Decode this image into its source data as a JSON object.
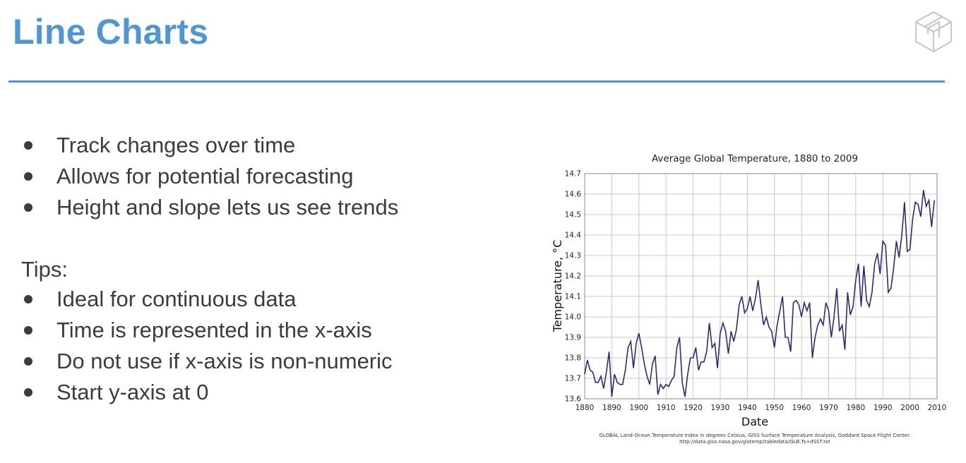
{
  "slide": {
    "title": "Line Charts",
    "bullets": [
      "Track changes over time",
      "Allows for potential forecasting",
      "Height and slope lets us see trends"
    ],
    "tips_label": "Tips:",
    "tips": [
      "Ideal for continuous data",
      "Time is represented in the x-axis",
      "Do not use if x-axis is non-numeric",
      "Start y-axis at 0"
    ]
  },
  "colors": {
    "accent": "#4f97d2",
    "line": "#2e2a7a",
    "text": "#3c3c3c"
  },
  "icons": {
    "logo": "cube-logo-icon"
  },
  "chart_data": {
    "type": "line",
    "title": "Average Global Temperature, 1880 to 2009",
    "xlabel": "Date",
    "ylabel": "Temperature, °C",
    "xlim": [
      1880,
      2010
    ],
    "ylim": [
      13.6,
      14.7
    ],
    "xticks": [
      "1880",
      "1890",
      "1900",
      "1910",
      "1920",
      "1930",
      "1940",
      "1950",
      "1960",
      "1970",
      "1980",
      "1990",
      "2000",
      "2010"
    ],
    "yticks": [
      "13.6",
      "13.7",
      "13.8",
      "13.9",
      "14.0",
      "14.1",
      "14.2",
      "14.3",
      "14.4",
      "14.5",
      "14.6",
      "14.7"
    ],
    "grid": true,
    "source_line1": "GLOBAL Land-Ocean Temperature Index in degrees Celsius, GISS Surface Temperature Analysis, Goddard Space Flight Center.",
    "source_line2": "http://data.giss.nasa.gov/gistemp/tabledata/GLB.Ts+dSST.txt",
    "series": [
      {
        "x": [
          1880,
          1881,
          1882,
          1883,
          1884,
          1885,
          1886,
          1887,
          1888,
          1889,
          1890,
          1891,
          1892,
          1893,
          1894,
          1895,
          1896,
          1897,
          1898,
          1899,
          1900,
          1901,
          1902,
          1903,
          1904,
          1905,
          1906,
          1907,
          1908,
          1909,
          1910,
          1911,
          1912,
          1913,
          1914,
          1915,
          1916,
          1917,
          1918,
          1919,
          1920,
          1921,
          1922,
          1923,
          1924,
          1925,
          1926,
          1927,
          1928,
          1929,
          1930,
          1931,
          1932,
          1933,
          1934,
          1935,
          1936,
          1937,
          1938,
          1939,
          1940,
          1941,
          1942,
          1943,
          1944,
          1945,
          1946,
          1947,
          1948,
          1949,
          1950,
          1951,
          1952,
          1953,
          1954,
          1955,
          1956,
          1957,
          1958,
          1959,
          1960,
          1961,
          1962,
          1963,
          1964,
          1965,
          1966,
          1967,
          1968,
          1969,
          1970,
          1971,
          1972,
          1973,
          1974,
          1975,
          1976,
          1977,
          1978,
          1979,
          1980,
          1981,
          1982,
          1983,
          1984,
          1985,
          1986,
          1987,
          1988,
          1989,
          1990,
          1991,
          1992,
          1993,
          1994,
          1995,
          1996,
          1997,
          1998,
          1999,
          2000,
          2001,
          2002,
          2003,
          2004,
          2005,
          2006,
          2007,
          2008,
          2009
        ],
        "values": [
          13.72,
          13.79,
          13.74,
          13.73,
          13.68,
          13.68,
          13.71,
          13.65,
          13.73,
          13.83,
          13.61,
          13.72,
          13.68,
          13.67,
          13.67,
          13.74,
          13.85,
          13.88,
          13.75,
          13.87,
          13.92,
          13.85,
          13.77,
          13.71,
          13.67,
          13.77,
          13.81,
          13.62,
          13.67,
          13.65,
          13.67,
          13.66,
          13.69,
          13.71,
          13.85,
          13.9,
          13.68,
          13.61,
          13.72,
          13.8,
          13.8,
          13.85,
          13.74,
          13.78,
          13.78,
          13.83,
          13.97,
          13.85,
          13.87,
          13.75,
          13.92,
          13.97,
          13.93,
          13.82,
          13.93,
          13.88,
          13.94,
          14.06,
          14.1,
          14.02,
          14.04,
          14.1,
          14.03,
          14.09,
          14.18,
          14.06,
          13.96,
          14.0,
          13.95,
          13.93,
          13.85,
          13.96,
          14.03,
          14.1,
          13.9,
          13.9,
          13.83,
          14.07,
          14.08,
          14.06,
          14.0,
          14.07,
          14.03,
          14.07,
          13.8,
          13.9,
          13.96,
          13.99,
          13.96,
          14.07,
          14.03,
          13.9,
          14.0,
          14.14,
          13.93,
          13.96,
          13.84,
          14.12,
          14.01,
          14.05,
          14.18,
          14.26,
          14.05,
          14.25,
          14.08,
          14.05,
          14.12,
          14.26,
          14.31,
          14.21,
          14.37,
          14.35,
          14.12,
          14.14,
          14.24,
          14.37,
          14.29,
          14.4,
          14.56,
          14.32,
          14.33,
          14.48,
          14.56,
          14.55,
          14.49,
          14.62,
          14.54,
          14.57,
          14.44,
          14.57
        ]
      }
    ]
  }
}
